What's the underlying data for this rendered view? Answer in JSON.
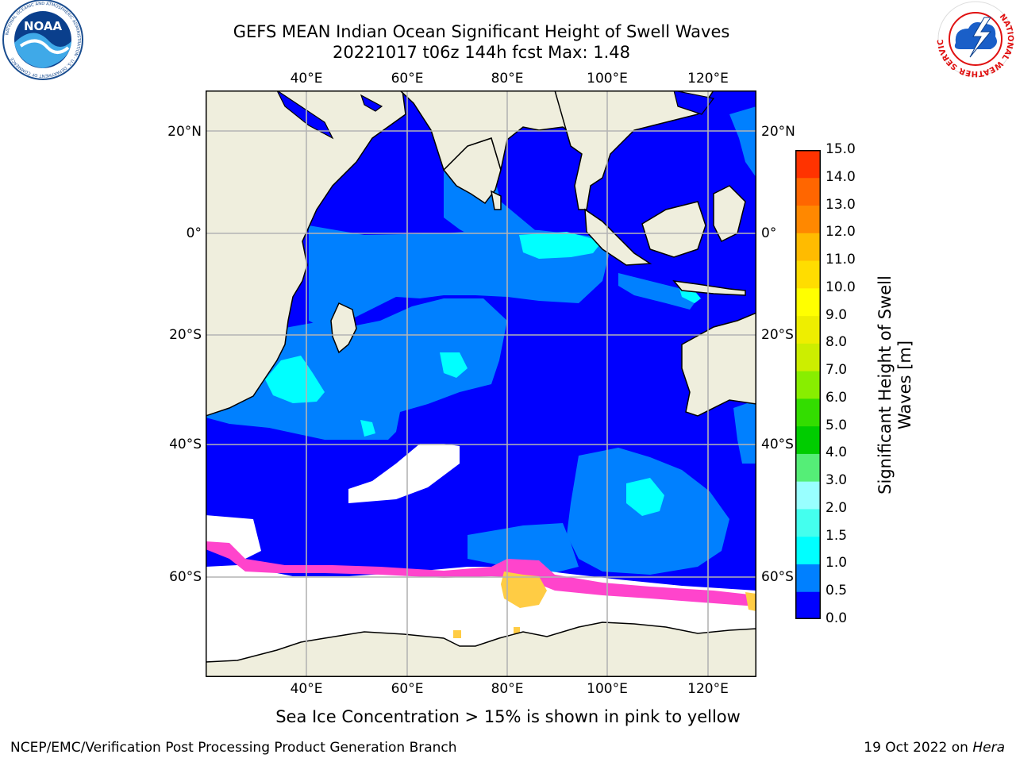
{
  "title": {
    "line1": "GEFS MEAN Indian Ocean Significant Height of Swell Waves",
    "line2": "20221017 t06z 144h fcst   Max: 1.48"
  },
  "logos": {
    "left": {
      "name": "NOAA",
      "text": "NOAA",
      "ring_text": "NATIONAL OCEANIC AND ATMOSPHERIC ADMINISTRATION · U.S. DEPARTMENT OF COMMERCE"
    },
    "right": {
      "name": "National Weather Service",
      "ring_text": "NATIONAL WEATHER SERVICE"
    }
  },
  "map": {
    "lon_range": [
      20,
      130
    ],
    "lat_range": [
      -72,
      28
    ],
    "lon_ticks": [
      "40°E",
      "60°E",
      "80°E",
      "100°E",
      "120°E"
    ],
    "lat_ticks": [
      "20°N",
      "0°",
      "20°S",
      "40°S",
      "60°S"
    ],
    "colors": {
      "land": "#efeedd",
      "swell_0_05": "#0000ff",
      "swell_05_10": "#0080ff",
      "swell_10_15": "#00ffff",
      "sea_ice": "#ffffff",
      "ice_pink": "#ff44cc",
      "ice_yellow": "#ffcc44",
      "grid": "#b4b4b4"
    }
  },
  "colorbar": {
    "ticks": [
      "15.0",
      "14.0",
      "13.0",
      "12.0",
      "11.0",
      "10.0",
      "9.0",
      "8.0",
      "7.0",
      "6.0",
      "5.0",
      "4.0",
      "3.0",
      "2.0",
      "1.5",
      "1.0",
      "0.5",
      "0.0"
    ],
    "colors": [
      "#0000ff",
      "#0080ff",
      "#00ffff",
      "#44ffee",
      "#99ffff",
      "#55ee77",
      "#00cc00",
      "#33dd00",
      "#88ee00",
      "#ccee00",
      "#eeee00",
      "#ffff00",
      "#ffdd00",
      "#ffbb00",
      "#ff8800",
      "#ff6600",
      "#ff3300",
      "#ff0000"
    ],
    "label": "Significant Height of Swell Waves [m]"
  },
  "caption": "Sea Ice Concentration > 15% is shown in pink to yellow",
  "footer": {
    "left": "NCEP/EMC/Verification Post Processing Product Generation Branch",
    "right_date": "19 Oct 2022 on ",
    "right_host": "Hera"
  }
}
